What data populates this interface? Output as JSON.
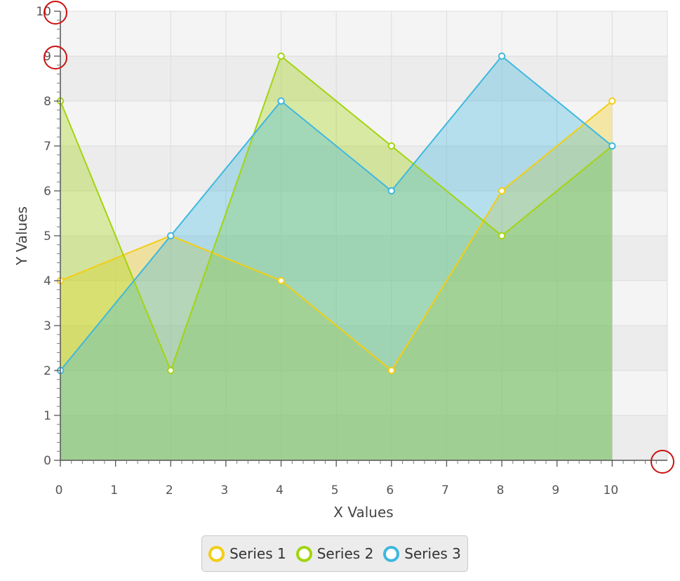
{
  "chart_data": {
    "type": "area",
    "title": "",
    "xlabel": "X Values",
    "ylabel": "Y Values",
    "xlim": [
      0,
      11
    ],
    "ylim": [
      0,
      10
    ],
    "x_major_ticks": [
      "0",
      "1",
      "2",
      "3",
      "4",
      "5",
      "6",
      "7",
      "8",
      "9",
      "10"
    ],
    "y_major_ticks": [
      "0",
      "1",
      "2",
      "3",
      "4",
      "5",
      "6",
      "7",
      "8",
      "9",
      "10"
    ],
    "grid": true,
    "alternating_row_fill": true,
    "legend_position": "bottom",
    "series": [
      {
        "name": "Series 1",
        "color": "#f3ce13",
        "points": [
          [
            0,
            4
          ],
          [
            2,
            5
          ],
          [
            4,
            4
          ],
          [
            6,
            2
          ],
          [
            8,
            6
          ],
          [
            10,
            8
          ]
        ]
      },
      {
        "name": "Series 2",
        "color": "#a3d40f",
        "points": [
          [
            0,
            8
          ],
          [
            2,
            2
          ],
          [
            4,
            9
          ],
          [
            6,
            7
          ],
          [
            8,
            5
          ],
          [
            10,
            7
          ]
        ]
      },
      {
        "name": "Series 3",
        "color": "#3fb8de",
        "points": [
          [
            0,
            2
          ],
          [
            2,
            5
          ],
          [
            4,
            8
          ],
          [
            6,
            6
          ],
          [
            8,
            9
          ],
          [
            10,
            7
          ]
        ]
      }
    ],
    "highlight_markers": [
      {
        "x": 0,
        "y": 10,
        "color": "#cc1111"
      },
      {
        "x": 0,
        "y": 9,
        "color": "#cc1111"
      },
      {
        "x": 11,
        "y": 0,
        "color": "#cc1111"
      }
    ]
  }
}
